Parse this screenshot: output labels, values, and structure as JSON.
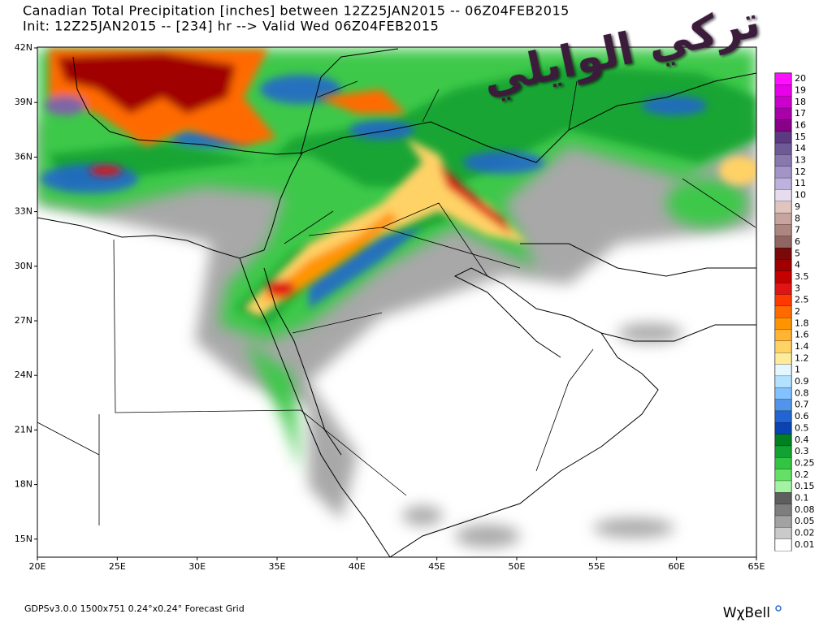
{
  "header": {
    "title": "Canadian Total Precipitation [inches] between 12Z25JAN2015 -- 06Z04FEB2015",
    "subtitle": "Init: 12Z25JAN2015 -- [234] hr --> Valid Wed 06Z04FEB2015"
  },
  "map": {
    "lat_labels": [
      "42N",
      "39N",
      "36N",
      "33N",
      "30N",
      "27N",
      "24N",
      "21N",
      "18N",
      "15N"
    ],
    "lon_labels": [
      "20E",
      "25E",
      "30E",
      "35E",
      "40E",
      "45E",
      "50E",
      "55E",
      "60E",
      "65E"
    ]
  },
  "legend": [
    {
      "label": "20",
      "color": "#ff10ff"
    },
    {
      "label": "19",
      "color": "#e800e8"
    },
    {
      "label": "18",
      "color": "#cc00cc"
    },
    {
      "label": "17",
      "color": "#aa00aa"
    },
    {
      "label": "16",
      "color": "#880088"
    },
    {
      "label": "15",
      "color": "#5c3a80"
    },
    {
      "label": "14",
      "color": "#6f5a98"
    },
    {
      "label": "13",
      "color": "#8878b0"
    },
    {
      "label": "12",
      "color": "#a294c6"
    },
    {
      "label": "11",
      "color": "#bdb2dc"
    },
    {
      "label": "10",
      "color": "#e6dced"
    },
    {
      "label": "9",
      "color": "#e2c4be"
    },
    {
      "label": "8",
      "color": "#c8a49e"
    },
    {
      "label": "7",
      "color": "#ad8680"
    },
    {
      "label": "6",
      "color": "#8f6660"
    },
    {
      "label": "5",
      "color": "#7a0a0a"
    },
    {
      "label": "4",
      "color": "#a00000"
    },
    {
      "label": "3.5",
      "color": "#c40000"
    },
    {
      "label": "3",
      "color": "#e01414"
    },
    {
      "label": "2.5",
      "color": "#ff3a00"
    },
    {
      "label": "2",
      "color": "#ff6a00"
    },
    {
      "label": "1.8",
      "color": "#ff9400"
    },
    {
      "label": "1.6",
      "color": "#ffb432"
    },
    {
      "label": "1.4",
      "color": "#ffd266"
    },
    {
      "label": "1.2",
      "color": "#ffec9a"
    },
    {
      "label": "1",
      "color": "#e4f6ff"
    },
    {
      "label": "0.9",
      "color": "#b2e2ff"
    },
    {
      "label": "0.8",
      "color": "#82c2ff"
    },
    {
      "label": "0.7",
      "color": "#5294ea"
    },
    {
      "label": "0.6",
      "color": "#2264d2"
    },
    {
      "label": "0.5",
      "color": "#0a44b4"
    },
    {
      "label": "0.4",
      "color": "#00801e"
    },
    {
      "label": "0.3",
      "color": "#12a232"
    },
    {
      "label": "0.25",
      "color": "#32c442"
    },
    {
      "label": "0.2",
      "color": "#64e064"
    },
    {
      "label": "0.15",
      "color": "#a4f2a4"
    },
    {
      "label": "0.1",
      "color": "#5e5e5e"
    },
    {
      "label": "0.08",
      "color": "#7e7e7e"
    },
    {
      "label": "0.05",
      "color": "#a2a2a2"
    },
    {
      "label": "0.02",
      "color": "#cacaca"
    },
    {
      "label": "0.01",
      "color": "#ffffff"
    }
  ],
  "footer": {
    "left": "GDPSv3.0.0  1500x751  0.24°x0.24°  Forecast Grid",
    "right": "WχBell"
  },
  "watermark": "تركي الوايلي"
}
